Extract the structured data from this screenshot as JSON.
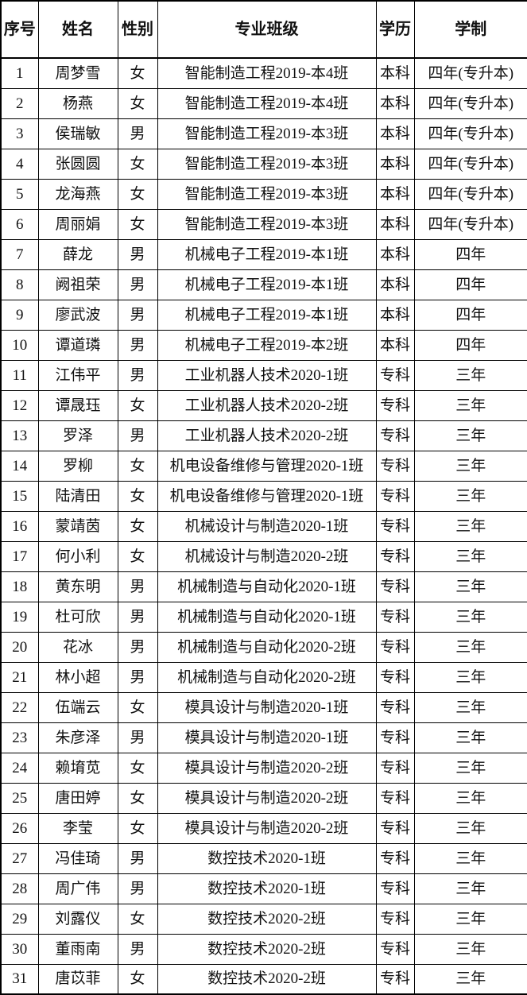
{
  "table": {
    "headers": [
      "序号",
      "姓名",
      "性别",
      "专业班级",
      "学历",
      "学制"
    ],
    "rows": [
      [
        "1",
        "周梦雪",
        "女",
        "智能制造工程2019-本4班",
        "本科",
        "四年(专升本)"
      ],
      [
        "2",
        "杨燕",
        "女",
        "智能制造工程2019-本4班",
        "本科",
        "四年(专升本)"
      ],
      [
        "3",
        "侯瑞敏",
        "男",
        "智能制造工程2019-本3班",
        "本科",
        "四年(专升本)"
      ],
      [
        "4",
        "张圆圆",
        "女",
        "智能制造工程2019-本3班",
        "本科",
        "四年(专升本)"
      ],
      [
        "5",
        "龙海燕",
        "女",
        "智能制造工程2019-本3班",
        "本科",
        "四年(专升本)"
      ],
      [
        "6",
        "周丽娟",
        "女",
        "智能制造工程2019-本3班",
        "本科",
        "四年(专升本)"
      ],
      [
        "7",
        "薛龙",
        "男",
        "机械电子工程2019-本1班",
        "本科",
        "四年"
      ],
      [
        "8",
        "阙祖荣",
        "男",
        "机械电子工程2019-本1班",
        "本科",
        "四年"
      ],
      [
        "9",
        "廖武波",
        "男",
        "机械电子工程2019-本1班",
        "本科",
        "四年"
      ],
      [
        "10",
        "谭道璘",
        "男",
        "机械电子工程2019-本2班",
        "本科",
        "四年"
      ],
      [
        "11",
        "江伟平",
        "男",
        "工业机器人技术2020-1班",
        "专科",
        "三年"
      ],
      [
        "12",
        "谭晟珏",
        "女",
        "工业机器人技术2020-2班",
        "专科",
        "三年"
      ],
      [
        "13",
        "罗泽",
        "男",
        "工业机器人技术2020-2班",
        "专科",
        "三年"
      ],
      [
        "14",
        "罗柳",
        "女",
        "机电设备维修与管理2020-1班",
        "专科",
        "三年"
      ],
      [
        "15",
        "陆清田",
        "女",
        "机电设备维修与管理2020-1班",
        "专科",
        "三年"
      ],
      [
        "16",
        "蒙靖茵",
        "女",
        "机械设计与制造2020-1班",
        "专科",
        "三年"
      ],
      [
        "17",
        "何小利",
        "女",
        "机械设计与制造2020-2班",
        "专科",
        "三年"
      ],
      [
        "18",
        "黄东明",
        "男",
        "机械制造与自动化2020-1班",
        "专科",
        "三年"
      ],
      [
        "19",
        "杜可欣",
        "男",
        "机械制造与自动化2020-1班",
        "专科",
        "三年"
      ],
      [
        "20",
        "花冰",
        "男",
        "机械制造与自动化2020-2班",
        "专科",
        "三年"
      ],
      [
        "21",
        "林小超",
        "男",
        "机械制造与自动化2020-2班",
        "专科",
        "三年"
      ],
      [
        "22",
        "伍端云",
        "女",
        "模具设计与制造2020-1班",
        "专科",
        "三年"
      ],
      [
        "23",
        "朱彦泽",
        "男",
        "模具设计与制造2020-1班",
        "专科",
        "三年"
      ],
      [
        "24",
        "赖堉苋",
        "女",
        "模具设计与制造2020-2班",
        "专科",
        "三年"
      ],
      [
        "25",
        "唐田婷",
        "女",
        "模具设计与制造2020-2班",
        "专科",
        "三年"
      ],
      [
        "26",
        "李莹",
        "女",
        "模具设计与制造2020-2班",
        "专科",
        "三年"
      ],
      [
        "27",
        "冯佳琦",
        "男",
        "数控技术2020-1班",
        "专科",
        "三年"
      ],
      [
        "28",
        "周广伟",
        "男",
        "数控技术2020-1班",
        "专科",
        "三年"
      ],
      [
        "29",
        "刘露仪",
        "女",
        "数控技术2020-2班",
        "专科",
        "三年"
      ],
      [
        "30",
        "董雨南",
        "男",
        "数控技术2020-2班",
        "专科",
        "三年"
      ],
      [
        "31",
        "唐苡菲",
        "女",
        "数控技术2020-2班",
        "专科",
        "三年"
      ]
    ]
  }
}
